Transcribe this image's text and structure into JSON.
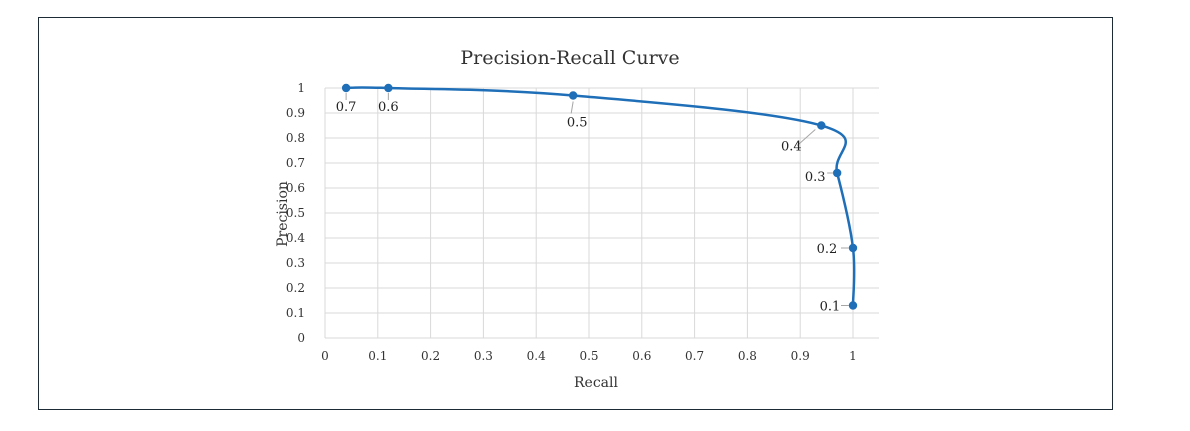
{
  "chart_data": {
    "type": "line",
    "title": "Precision-Recall Curve",
    "xlabel": "Recall",
    "ylabel": "Precision",
    "xlim": [
      0,
      1
    ],
    "ylim": [
      0,
      1
    ],
    "xticks": [
      0,
      0.1,
      0.2,
      0.3,
      0.4,
      0.5,
      0.6,
      0.7,
      0.8,
      0.9,
      1
    ],
    "yticks": [
      0,
      0.1,
      0.2,
      0.3,
      0.4,
      0.5,
      0.6,
      0.7,
      0.8,
      0.9,
      1
    ],
    "x_tick_labels": [
      "0",
      "0.1",
      "0.2",
      "0.3",
      "0.4",
      "0.5",
      "0.6",
      "0.7",
      "0.8",
      "0.9",
      "1"
    ],
    "y_tick_labels": [
      "0",
      "0.1",
      "0.2",
      "0.3",
      "0.4",
      "0.5",
      "0.6",
      "0.7",
      "0.8",
      "0.9",
      "1"
    ],
    "grid": true,
    "legend": "none",
    "line_color": "#1f6fb8",
    "grid_color": "#d9d9d9",
    "series": [
      {
        "points": [
          {
            "x": 0.04,
            "y": 1.0,
            "label": "0.7"
          },
          {
            "x": 0.12,
            "y": 1.0,
            "label": "0.6"
          },
          {
            "x": 0.47,
            "y": 0.97,
            "label": "0.5"
          },
          {
            "x": 0.94,
            "y": 0.85,
            "label": "0.4"
          },
          {
            "x": 0.97,
            "y": 0.66,
            "label": "0.3"
          },
          {
            "x": 1.0,
            "y": 0.36,
            "label": "0.2"
          },
          {
            "x": 1.0,
            "y": 0.13,
            "label": "0.1"
          }
        ]
      }
    ]
  }
}
